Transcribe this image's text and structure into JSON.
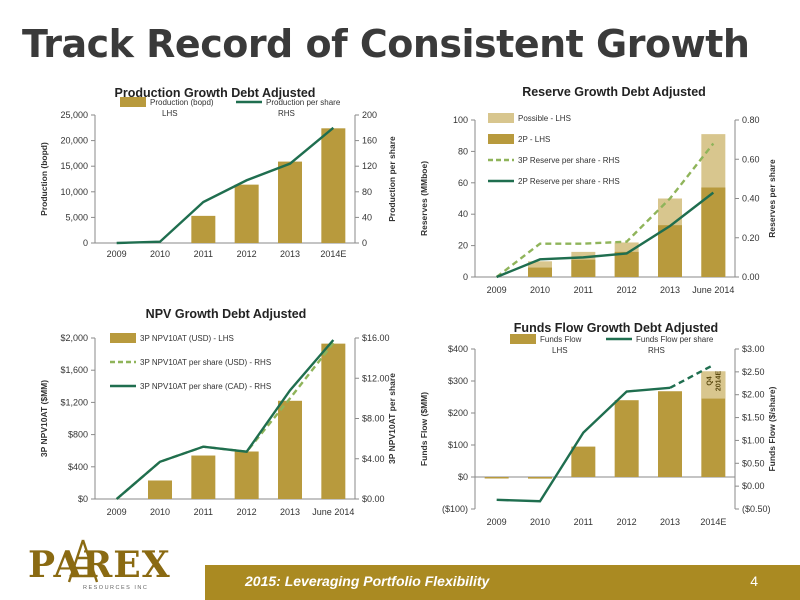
{
  "page": {
    "title": "Track Record of Consistent Growth"
  },
  "footer": {
    "text": "2015: Leveraging Portfolio Flexibility",
    "page_number": "4"
  },
  "logo": {
    "brand": "PAREX",
    "subtitle": "RESOURCES INC"
  },
  "colors": {
    "bar": "#b89a3d",
    "bar_light": "#d8c68e",
    "line": "#1f6e4f",
    "dash": "#8fb45a",
    "footer": "#aa8a22"
  },
  "chart_data": [
    {
      "type": "bar",
      "title": "Production Growth Debt Adjusted",
      "ylabel": "Production (bopd)",
      "y2label": "Production per share",
      "categories": [
        "2009",
        "2010",
        "2011",
        "2012",
        "2013",
        "2014E"
      ],
      "ylim": [
        0,
        25000
      ],
      "y2lim": [
        0,
        200
      ],
      "yticks": [
        "0",
        "5,000",
        "10,000",
        "15,000",
        "20,000",
        "25,000"
      ],
      "y2ticks": [
        "0",
        "40",
        "80",
        "120",
        "160",
        "200"
      ],
      "legend_position": "top",
      "series": [
        {
          "name": "Production (bopd)",
          "name2": "LHS",
          "kind": "bar",
          "axis": "left",
          "values": [
            0,
            0,
            5300,
            11400,
            15900,
            22400
          ]
        },
        {
          "name": "Production per share",
          "name2": "RHS",
          "kind": "line",
          "axis": "right",
          "values": [
            0,
            2,
            64,
            98,
            124,
            180
          ]
        }
      ]
    },
    {
      "type": "bar",
      "title": "Reserve Growth Debt Adjusted",
      "ylabel": "Reserves (MMboe)",
      "y2label": "Reserves per share",
      "categories": [
        "2009",
        "2010",
        "2011",
        "2012",
        "2013",
        "June 2014"
      ],
      "ylim": [
        0,
        100
      ],
      "y2lim": [
        0,
        0.8
      ],
      "yticks": [
        "0",
        "20",
        "40",
        "60",
        "80",
        "100"
      ],
      "y2ticks": [
        "0.00",
        "0.20",
        "0.40",
        "0.60",
        "0.80"
      ],
      "legend_position": "top-left",
      "series": [
        {
          "name": "Possible - LHS",
          "kind": "bar",
          "axis": "left",
          "stack_base": false,
          "values": [
            0,
            10,
            16,
            22,
            50,
            91
          ]
        },
        {
          "name": "2P - LHS",
          "kind": "bar",
          "axis": "left",
          "stack_base": true,
          "values": [
            0,
            6,
            11,
            16,
            33,
            57
          ]
        },
        {
          "name": "3P Reserve per share - RHS",
          "kind": "dashed",
          "axis": "right",
          "values": [
            0,
            0.17,
            0.17,
            0.18,
            0.4,
            0.68
          ]
        },
        {
          "name": "2P Reserve per share - RHS",
          "kind": "line",
          "axis": "right",
          "values": [
            0,
            0.09,
            0.1,
            0.12,
            0.26,
            0.43
          ]
        }
      ]
    },
    {
      "type": "bar",
      "title": "NPV Growth Debt Adjusted",
      "ylabel": "3P NPV10AT ($MM)",
      "y2label": "3P NPV10AT per share",
      "categories": [
        "2009",
        "2010",
        "2011",
        "2012",
        "2013",
        "June 2014"
      ],
      "ylim": [
        0,
        2000
      ],
      "y2lim": [
        0,
        16
      ],
      "yticks": [
        "$0",
        "$400",
        "$800",
        "$1,200",
        "$1,600",
        "$2,000"
      ],
      "y2ticks": [
        "$0.00",
        "$4.00",
        "$8.00",
        "$12.00",
        "$16.00"
      ],
      "legend_position": "top-left",
      "series": [
        {
          "name": "3P NPV10AT (USD) - LHS",
          "kind": "bar",
          "axis": "left",
          "values": [
            0,
            230,
            540,
            590,
            1220,
            1930
          ]
        },
        {
          "name": "3P NPV10AT per share (USD) - RHS",
          "kind": "dashed",
          "axis": "right",
          "values": [
            0,
            3.7,
            5.2,
            4.7,
            10.0,
            15.5
          ]
        },
        {
          "name": "3P NPV10AT per share (CAD) - RHS",
          "kind": "line",
          "axis": "right",
          "values": [
            0,
            3.7,
            5.2,
            4.7,
            10.8,
            15.8
          ]
        }
      ]
    },
    {
      "type": "bar",
      "title": "Funds Flow Growth Debt Adjusted",
      "ylabel": "Funds Flow ($MM)",
      "y2label": "Funds Flow ($/share)",
      "categories": [
        "2009",
        "2010",
        "2011",
        "2012",
        "2013",
        "2014E"
      ],
      "ylim": [
        -100,
        400
      ],
      "y2lim": [
        -0.5,
        3.0
      ],
      "yticks": [
        "($100)",
        "$0",
        "$100",
        "$200",
        "$300",
        "$400"
      ],
      "y2ticks": [
        "($0.50)",
        "$0.00",
        "$0.50",
        "$1.00",
        "$1.50",
        "$2.00",
        "$2.50",
        "$3.00"
      ],
      "legend_position": "top",
      "annotation": {
        "lines": [
          "Q4",
          "2014E"
        ],
        "category": "2014E"
      },
      "series": [
        {
          "name": "Funds Flow",
          "name2": "LHS",
          "kind": "bar",
          "axis": "left",
          "values": [
            -3,
            -5,
            95,
            240,
            268,
            330
          ],
          "split_top": 85
        },
        {
          "name": "Funds Flow per share",
          "name2": "RHS",
          "kind": "line",
          "axis": "right",
          "values": [
            -0.3,
            -0.33,
            1.17,
            2.07,
            2.15,
            2.65
          ],
          "dashed_last": true
        }
      ]
    }
  ]
}
